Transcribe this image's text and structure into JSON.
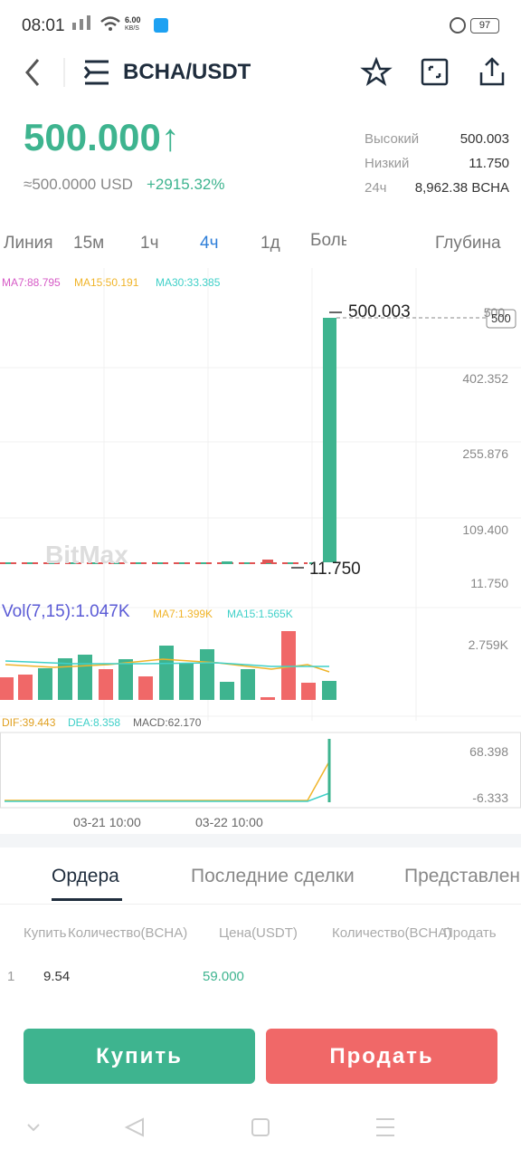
{
  "status": {
    "time": "08:01",
    "speed": "6.00",
    "speed_unit": "KB/S",
    "battery": "97"
  },
  "header": {
    "pair": "BCHA/USDT"
  },
  "price": {
    "last": "500.000↑",
    "usd": "≈500.0000 USD",
    "change": "+2915.32%"
  },
  "stats": [
    {
      "label": "Высокий",
      "value": "500.003"
    },
    {
      "label": "Низкий",
      "value": "11.750"
    },
    {
      "label": "24ч",
      "value": "8,962.38 BCHA"
    }
  ],
  "tabs": [
    "Линия",
    "15м",
    "1ч",
    "4ч",
    "1д",
    "Больше",
    "Глубина"
  ],
  "kline": {
    "ma": [
      "MA7:88.795",
      "MA15:50.191",
      "MA30:33.385"
    ],
    "axis": [
      "500.",
      "402.352",
      "255.876",
      "109.400",
      "11.750"
    ],
    "high": "500.003",
    "low": "11.750",
    "current": "500",
    "watermark": "BitMax"
  },
  "volume": {
    "title": "Vol(7,15):1.047K",
    "ma7": "MA7:1.399K",
    "ma15": "MA15:1.565K",
    "axis": "2.759K"
  },
  "macd": {
    "dif": "DIF:39.443",
    "dea": "DEA:8.358",
    "macd": "MACD:62.170",
    "axis": [
      "68.398",
      "-6.333"
    ]
  },
  "dates": [
    "03-21 10:00",
    "03-22 10:00"
  ],
  "order_tabs": [
    "Ордера",
    "Последние сделки",
    "Представлен"
  ],
  "columns": [
    "Купить",
    "Количество(BCHA)",
    "Цена(USDT)",
    "Количество(BCHA)",
    "Продать"
  ],
  "row": [
    "1",
    "9.54",
    "59.000"
  ],
  "buttons": [
    "Купить",
    "Продать"
  ]
}
